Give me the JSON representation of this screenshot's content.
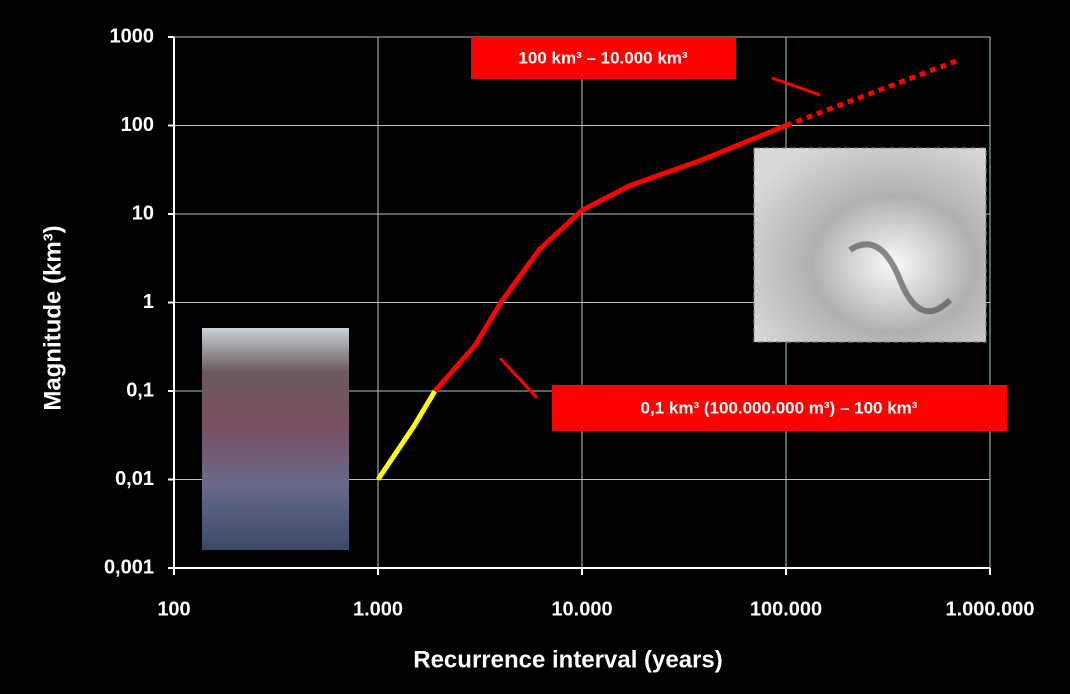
{
  "chart_data": {
    "type": "line",
    "xlabel": "Recurrence interval (years)",
    "ylabel": "Magnitude (km³)",
    "log_x": true,
    "log_y": true,
    "grid": true,
    "xlim": [
      100,
      1000000
    ],
    "ylim": [
      0.001,
      1000
    ],
    "xticks": [
      100,
      {
        "value": 1000,
        "label": "1.000"
      },
      {
        "value": 10000,
        "label": "10.000"
      },
      {
        "value": 100000,
        "label": "100.000"
      },
      {
        "value": 1000000,
        "label": "1.000.000"
      }
    ],
    "yticks": [
      {
        "value": 0.001,
        "label": "0,001"
      },
      {
        "value": 0.01,
        "label": "0,01"
      },
      {
        "value": 0.1,
        "label": "0,1"
      },
      1,
      10,
      100,
      1000
    ],
    "series": [
      {
        "color": "#ffff00",
        "style": "solid",
        "x": [
          1000,
          1500,
          1900
        ],
        "values": [
          0.01,
          0.04,
          0.1
        ]
      },
      {
        "color": "#ff0000",
        "style": "solid",
        "x": [
          1900,
          3000,
          4000,
          6200,
          10000,
          17200,
          37800,
          100000
        ],
        "values": [
          0.1,
          0.33,
          1,
          4,
          11,
          21,
          40,
          100
        ]
      },
      {
        "color": "#ff0000",
        "style": "dotted",
        "x": [
          100000,
          690000
        ],
        "values": [
          100,
          540
        ]
      }
    ],
    "annotations": [
      "100 km³ – 10.000 km³",
      "0,1 km³ (100.000.000 m³) – 100 km³"
    ]
  }
}
